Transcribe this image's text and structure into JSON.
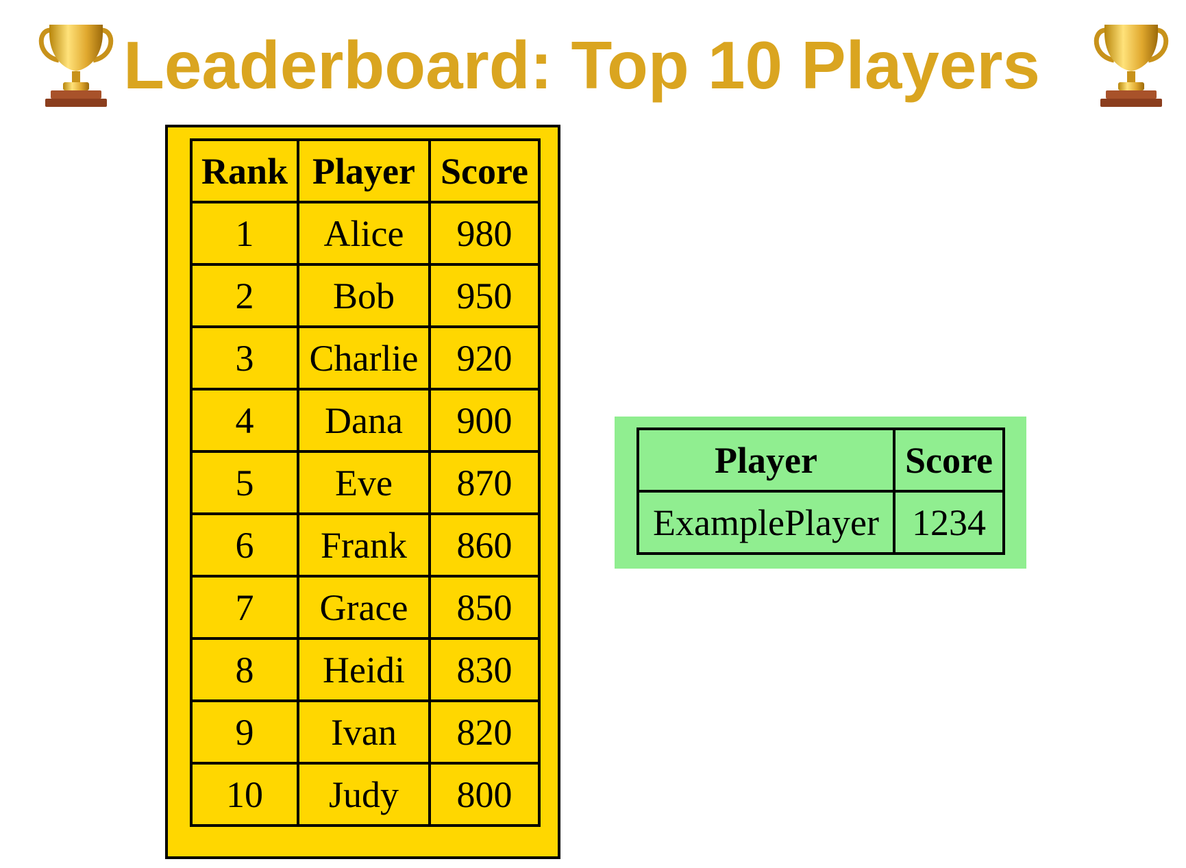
{
  "header": {
    "title": "Leaderboard: Top 10 Players",
    "left_icon": "trophy-icon",
    "right_icon": "trophy-icon",
    "title_color": "#DAA520"
  },
  "leaderboard": {
    "background": "#FFD700",
    "columns": [
      "Rank",
      "Player",
      "Score"
    ],
    "rows": [
      {
        "rank": "1",
        "player": "Alice",
        "score": "980"
      },
      {
        "rank": "2",
        "player": "Bob",
        "score": "950"
      },
      {
        "rank": "3",
        "player": "Charlie",
        "score": "920"
      },
      {
        "rank": "4",
        "player": "Dana",
        "score": "900"
      },
      {
        "rank": "5",
        "player": "Eve",
        "score": "870"
      },
      {
        "rank": "6",
        "player": "Frank",
        "score": "860"
      },
      {
        "rank": "7",
        "player": "Grace",
        "score": "850"
      },
      {
        "rank": "8",
        "player": "Heidi",
        "score": "830"
      },
      {
        "rank": "9",
        "player": "Ivan",
        "score": "820"
      },
      {
        "rank": "10",
        "player": "Judy",
        "score": "800"
      }
    ]
  },
  "current_player": {
    "background": "#90EE90",
    "columns": [
      "Player",
      "Score"
    ],
    "player": "ExamplePlayer",
    "score": "1234"
  }
}
